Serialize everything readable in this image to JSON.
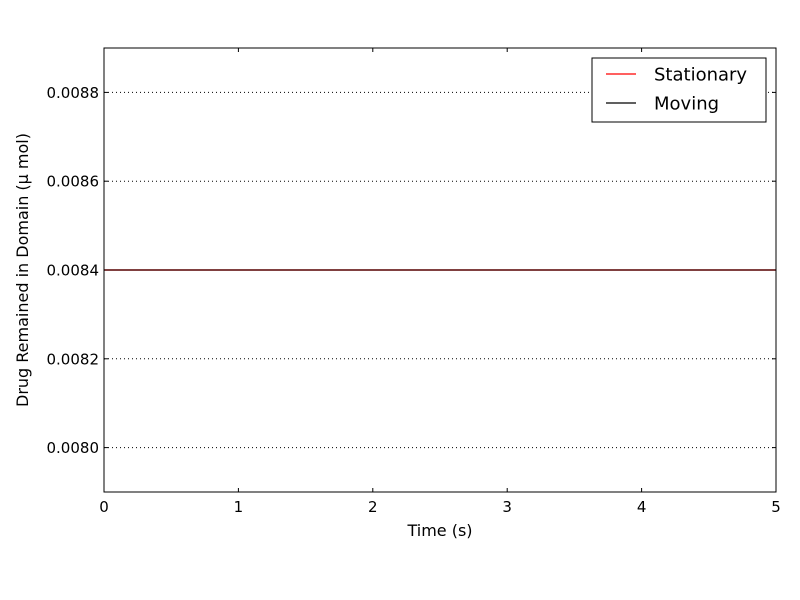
{
  "chart_data": {
    "type": "line",
    "title": "",
    "xlabel": "Time (s)",
    "ylabel": "Drug Remained in Domain (μ mol)",
    "xlim": [
      0,
      5
    ],
    "ylim": [
      0.0079,
      0.0089
    ],
    "xticks": [
      0,
      1,
      2,
      3,
      4,
      5
    ],
    "xtick_labels": [
      "0",
      "1",
      "2",
      "3",
      "4",
      "5"
    ],
    "yticks": [
      0.008,
      0.0082,
      0.0084,
      0.0086,
      0.0088
    ],
    "ytick_labels": [
      "0.0080",
      "0.0082",
      "0.0084",
      "0.0086",
      "0.0088"
    ],
    "grid": "horizontal dotted",
    "legend_position": "top-right",
    "series": [
      {
        "name": "Stationary",
        "color": "#ff0000",
        "x": [
          0,
          5
        ],
        "y": [
          0.0084,
          0.0084
        ]
      },
      {
        "name": "Moving",
        "color": "#000000",
        "x": [
          0,
          5
        ],
        "y": [
          0.0084,
          0.0084
        ]
      }
    ]
  }
}
